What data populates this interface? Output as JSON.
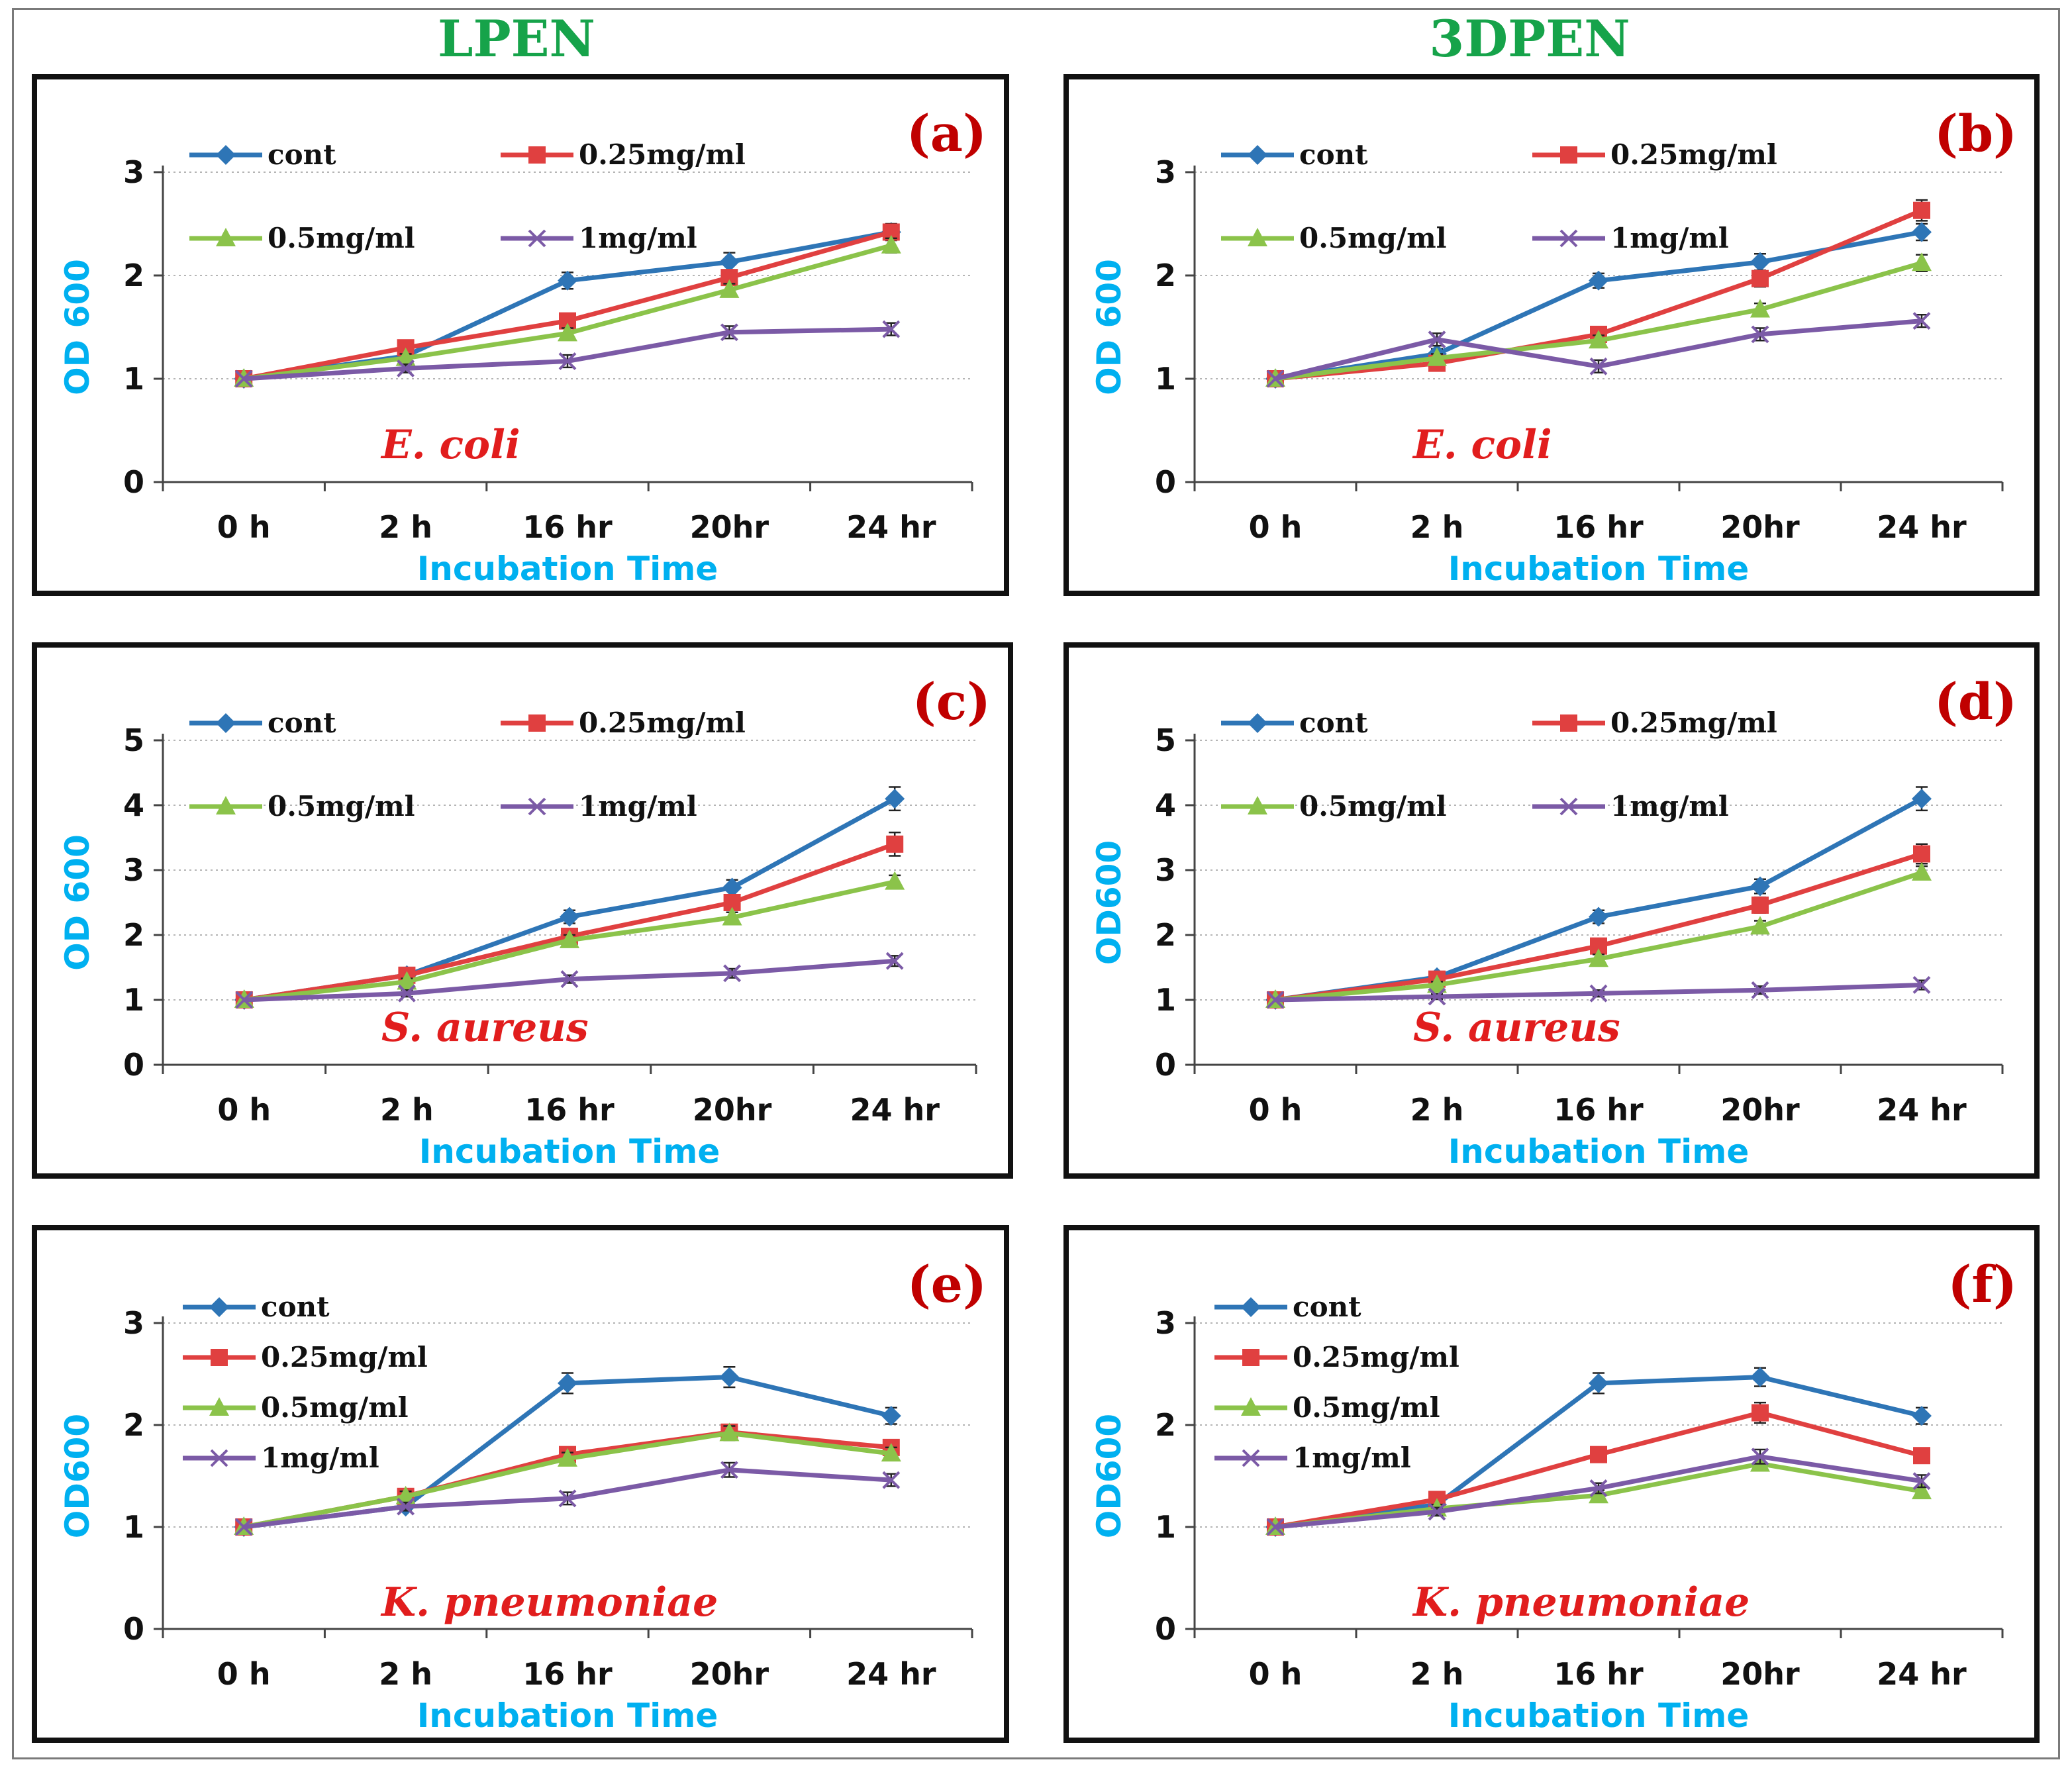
{
  "column_titles": [
    "LPEN",
    "3DPEN"
  ],
  "colors": {
    "title": "#16a34a",
    "axis_label": "#00b0f0",
    "species": "#e11d1d",
    "panel_letter": "#c00000",
    "cont": "#2e75b6",
    "c025": "#e04040",
    "c05": "#8bc34a",
    "c1": "#7b5aa6"
  },
  "chart_data": [
    {
      "type": "line",
      "panel_label": "(a)",
      "species": "E. coli",
      "title": "",
      "xlabel": "Incubation Time",
      "ylabel": "OD 600",
      "categories": [
        "0 h",
        "2 h",
        "16 hr",
        "20hr",
        "24 hr"
      ],
      "ylim": [
        0,
        3
      ],
      "yticks": [
        0,
        1,
        2,
        3
      ],
      "legend_layout": "grid",
      "series": [
        {
          "name": "cont",
          "color": "#2e75b6",
          "marker": "diamond",
          "values": [
            1.0,
            1.22,
            1.95,
            2.13,
            2.42
          ],
          "errors": [
            0,
            0.05,
            0.08,
            0.09,
            0.07
          ]
        },
        {
          "name": "0.25mg/ml",
          "color": "#e04040",
          "marker": "square",
          "values": [
            1.0,
            1.3,
            1.56,
            1.98,
            2.42
          ],
          "errors": [
            0,
            0.05,
            0.06,
            0.07,
            0.08
          ]
        },
        {
          "name": "0.5mg/ml",
          "color": "#8bc34a",
          "marker": "triangle",
          "values": [
            1.0,
            1.2,
            1.44,
            1.86,
            2.29
          ],
          "errors": [
            0,
            0.04,
            0.05,
            0.06,
            0.07
          ]
        },
        {
          "name": "1mg/ml",
          "color": "#7b5aa6",
          "marker": "x",
          "values": [
            1.0,
            1.1,
            1.17,
            1.45,
            1.48
          ],
          "errors": [
            0,
            0.04,
            0.06,
            0.06,
            0.06
          ]
        }
      ]
    },
    {
      "type": "line",
      "panel_label": "(b)",
      "species": "E. coli",
      "title": "",
      "xlabel": "Incubation Time",
      "ylabel": "OD 600",
      "categories": [
        "0 h",
        "2 h",
        "16 hr",
        "20hr",
        "24 hr"
      ],
      "ylim": [
        0,
        3
      ],
      "yticks": [
        0,
        1,
        2,
        3
      ],
      "legend_layout": "grid",
      "series": [
        {
          "name": "cont",
          "color": "#2e75b6",
          "marker": "diamond",
          "values": [
            1.0,
            1.24,
            1.95,
            2.13,
            2.42
          ],
          "errors": [
            0,
            0.05,
            0.07,
            0.08,
            0.08
          ]
        },
        {
          "name": "0.25mg/ml",
          "color": "#e04040",
          "marker": "square",
          "values": [
            1.0,
            1.15,
            1.43,
            1.97,
            2.63
          ],
          "errors": [
            0,
            0.04,
            0.05,
            0.08,
            0.1
          ]
        },
        {
          "name": "0.5mg/ml",
          "color": "#8bc34a",
          "marker": "triangle",
          "values": [
            1.0,
            1.2,
            1.37,
            1.67,
            2.12
          ],
          "errors": [
            0,
            0.04,
            0.05,
            0.06,
            0.08
          ]
        },
        {
          "name": "1mg/ml",
          "color": "#7b5aa6",
          "marker": "x",
          "values": [
            1.0,
            1.38,
            1.12,
            1.43,
            1.56
          ],
          "errors": [
            0,
            0.06,
            0.06,
            0.06,
            0.06
          ]
        }
      ]
    },
    {
      "type": "line",
      "panel_label": "(c)",
      "species": "S. aureus",
      "title": "",
      "xlabel": "Incubation Time",
      "ylabel": "OD 600",
      "categories": [
        "0 h",
        "2 h",
        "16 hr",
        "20hr",
        "24 hr"
      ],
      "ylim": [
        0,
        5
      ],
      "yticks": [
        0,
        1,
        2,
        3,
        4,
        5
      ],
      "legend_layout": "grid",
      "series": [
        {
          "name": "cont",
          "color": "#2e75b6",
          "marker": "diamond",
          "values": [
            1.0,
            1.38,
            2.28,
            2.73,
            4.1
          ],
          "errors": [
            0,
            0.06,
            0.1,
            0.12,
            0.18
          ]
        },
        {
          "name": "0.25mg/ml",
          "color": "#e04040",
          "marker": "square",
          "values": [
            1.0,
            1.38,
            1.98,
            2.5,
            3.4
          ],
          "errors": [
            0,
            0.06,
            0.09,
            0.1,
            0.18
          ]
        },
        {
          "name": "0.5mg/ml",
          "color": "#8bc34a",
          "marker": "triangle",
          "values": [
            1.0,
            1.28,
            1.92,
            2.27,
            2.82
          ],
          "errors": [
            0,
            0.05,
            0.08,
            0.08,
            0.1
          ]
        },
        {
          "name": "1mg/ml",
          "color": "#7b5aa6",
          "marker": "x",
          "values": [
            1.0,
            1.1,
            1.32,
            1.41,
            1.6
          ],
          "errors": [
            0,
            0.05,
            0.06,
            0.07,
            0.08
          ]
        }
      ]
    },
    {
      "type": "line",
      "panel_label": "(d)",
      "species": "S. aureus",
      "title": "",
      "xlabel": "Incubation Time",
      "ylabel": "OD600",
      "categories": [
        "0 h",
        "2 h",
        "16 hr",
        "20hr",
        "24 hr"
      ],
      "ylim": [
        0,
        5
      ],
      "yticks": [
        0,
        1,
        2,
        3,
        4,
        5
      ],
      "legend_layout": "grid",
      "series": [
        {
          "name": "cont",
          "color": "#2e75b6",
          "marker": "diamond",
          "values": [
            1.0,
            1.35,
            2.28,
            2.75,
            4.1
          ],
          "errors": [
            0,
            0.06,
            0.1,
            0.11,
            0.18
          ]
        },
        {
          "name": "0.25mg/ml",
          "color": "#e04040",
          "marker": "square",
          "values": [
            1.0,
            1.32,
            1.83,
            2.46,
            3.25
          ],
          "errors": [
            0,
            0.06,
            0.08,
            0.12,
            0.15
          ]
        },
        {
          "name": "0.5mg/ml",
          "color": "#8bc34a",
          "marker": "triangle",
          "values": [
            1.0,
            1.23,
            1.63,
            2.13,
            2.96
          ],
          "errors": [
            0,
            0.05,
            0.07,
            0.09,
            0.1
          ]
        },
        {
          "name": "1mg/ml",
          "color": "#7b5aa6",
          "marker": "x",
          "values": [
            1.0,
            1.05,
            1.1,
            1.15,
            1.23
          ],
          "errors": [
            0,
            0.04,
            0.05,
            0.06,
            0.07
          ]
        }
      ]
    },
    {
      "type": "line",
      "panel_label": "(e)",
      "species": "K. pneumoniae",
      "title": "",
      "xlabel": "Incubation Time",
      "ylabel": "OD600",
      "categories": [
        "0 h",
        "2 h",
        "16 hr",
        "20hr",
        "24 hr"
      ],
      "ylim": [
        0,
        3
      ],
      "yticks": [
        0,
        1,
        2,
        3
      ],
      "legend_layout": "column",
      "series": [
        {
          "name": "cont",
          "color": "#2e75b6",
          "marker": "diamond",
          "values": [
            1.0,
            1.2,
            2.41,
            2.47,
            2.09
          ],
          "errors": [
            0,
            0.05,
            0.1,
            0.1,
            0.08
          ]
        },
        {
          "name": "0.25mg/ml",
          "color": "#e04040",
          "marker": "square",
          "values": [
            1.0,
            1.3,
            1.71,
            1.93,
            1.78
          ],
          "errors": [
            0,
            0.05,
            0.06,
            0.07,
            0.07
          ]
        },
        {
          "name": "0.5mg/ml",
          "color": "#8bc34a",
          "marker": "triangle",
          "values": [
            1.0,
            1.3,
            1.67,
            1.92,
            1.72
          ],
          "errors": [
            0,
            0.05,
            0.06,
            0.07,
            0.06
          ]
        },
        {
          "name": "1mg/ml",
          "color": "#7b5aa6",
          "marker": "x",
          "values": [
            1.0,
            1.2,
            1.28,
            1.56,
            1.46
          ],
          "errors": [
            0,
            0.04,
            0.06,
            0.07,
            0.06
          ]
        }
      ]
    },
    {
      "type": "line",
      "panel_label": "(f)",
      "species": "K. pneumoniae",
      "title": "",
      "xlabel": "Incubation Time",
      "ylabel": "OD600",
      "categories": [
        "0 h",
        "2 h",
        "16 hr",
        "20hr",
        "24 hr"
      ],
      "ylim": [
        0,
        3
      ],
      "yticks": [
        0,
        1,
        2,
        3
      ],
      "legend_layout": "column",
      "series": [
        {
          "name": "cont",
          "color": "#2e75b6",
          "marker": "diamond",
          "values": [
            1.0,
            1.22,
            2.41,
            2.47,
            2.09
          ],
          "errors": [
            0,
            0.05,
            0.1,
            0.09,
            0.08
          ]
        },
        {
          "name": "0.25mg/ml",
          "color": "#e04040",
          "marker": "square",
          "values": [
            1.0,
            1.27,
            1.71,
            2.12,
            1.7
          ],
          "errors": [
            0,
            0.05,
            0.07,
            0.1,
            0.07
          ]
        },
        {
          "name": "0.5mg/ml",
          "color": "#8bc34a",
          "marker": "triangle",
          "values": [
            1.0,
            1.18,
            1.31,
            1.62,
            1.35
          ],
          "errors": [
            0,
            0.04,
            0.05,
            0.06,
            0.05
          ]
        },
        {
          "name": "1mg/ml",
          "color": "#7b5aa6",
          "marker": "x",
          "values": [
            1.0,
            1.15,
            1.38,
            1.69,
            1.45
          ],
          "errors": [
            0,
            0.04,
            0.05,
            0.07,
            0.06
          ]
        }
      ]
    }
  ]
}
